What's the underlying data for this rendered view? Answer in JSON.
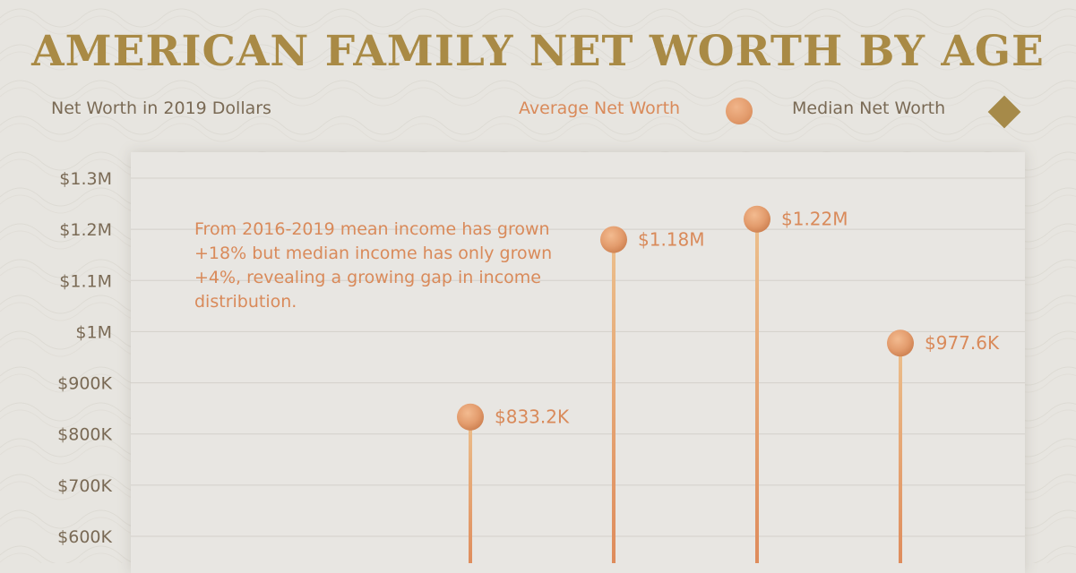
{
  "header": {
    "title": "AMERICAN FAMILY NET WORTH BY AGE",
    "subtitle": "Net Worth in 2019 Dollars"
  },
  "legend": {
    "average": "Average Net Worth",
    "median": "Median Net Worth"
  },
  "colors": {
    "average": "#e39c6d",
    "median": "#a68a49",
    "title": "#a98a45",
    "text": "#7a6a55"
  },
  "chart_data": {
    "type": "scatter",
    "title": "AMERICAN FAMILY NET WORTH BY AGE",
    "subtitle": "Net Worth in 2019 Dollars",
    "ylim_visible": [
      550000,
      1300000
    ],
    "y_ticks": [
      {
        "value": 1300000,
        "label": "$1.3M"
      },
      {
        "value": 1200000,
        "label": "$1.2M"
      },
      {
        "value": 1100000,
        "label": "$1.1M"
      },
      {
        "value": 1000000,
        "label": "$1M"
      },
      {
        "value": 900000,
        "label": "$900K"
      },
      {
        "value": 800000,
        "label": "$800K"
      },
      {
        "value": 700000,
        "label": "$700K"
      },
      {
        "value": 600000,
        "label": "$600K"
      }
    ],
    "grid": true,
    "legend_position": "top-right",
    "series": [
      {
        "name": "Average Net Worth",
        "marker": "circle",
        "points": [
          {
            "slot": 3,
            "value": 833200,
            "label": "$833.2K"
          },
          {
            "slot": 4,
            "value": 1180000,
            "label": "$1.18M"
          },
          {
            "slot": 5,
            "value": 1220000,
            "label": "$1.22M"
          },
          {
            "slot": 6,
            "value": 977600,
            "label": "$977.6K"
          }
        ]
      }
    ],
    "annotation": "From 2016-2019 mean income has grown +18% but median income has only grown +4%, revealing a growing gap in income distribution."
  }
}
